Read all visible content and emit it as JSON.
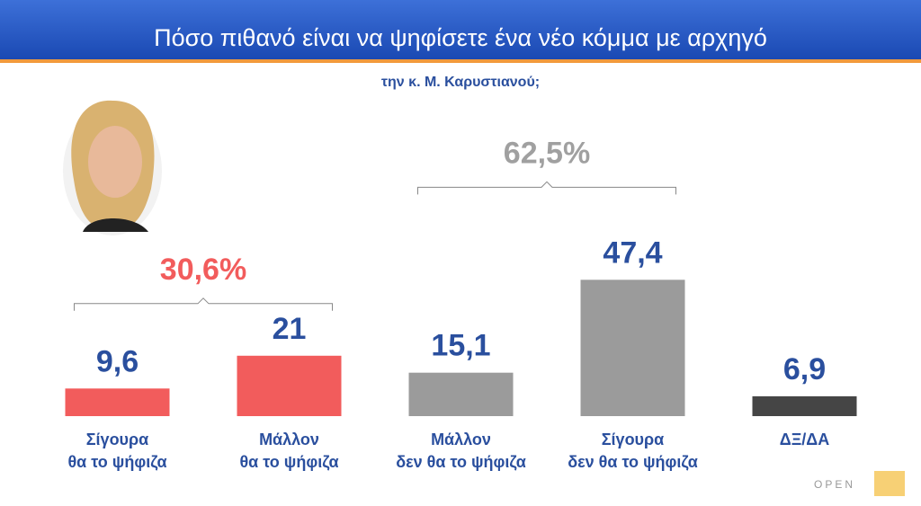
{
  "chart_data": {
    "type": "bar",
    "title": "Πόσο πιθανό είναι να ψηφίσετε ένα νέο κόμμα με αρχηγό",
    "subtitle": "την κ. Μ. Καρυστιανού;",
    "categories": [
      "Σίγουρα\nθα το ψήφιζα",
      "Μάλλον\nθα το ψήφιζα",
      "Μάλλον\nδεν θα το ψήφιζα",
      "Σίγουρα\nδεν θα το ψήφιζα",
      "ΔΞ/ΔΑ"
    ],
    "values": [
      9.6,
      21,
      15.1,
      47.4,
      6.9
    ],
    "value_labels": [
      "9,6",
      "21",
      "15,1",
      "47,4",
      "6,9"
    ],
    "colors": [
      "#f25c5c",
      "#f25c5c",
      "#9b9b9b",
      "#9b9b9b",
      "#454545"
    ],
    "ylim": [
      0,
      50
    ],
    "groups": [
      {
        "value": 30.6,
        "label": "30,6%",
        "color": "#f25c5c",
        "bars": [
          0,
          1
        ]
      },
      {
        "value": 62.5,
        "label": "62,5%",
        "color": "#a0a0a0",
        "bars": [
          2,
          3
        ]
      }
    ],
    "logo": "OPEN"
  }
}
